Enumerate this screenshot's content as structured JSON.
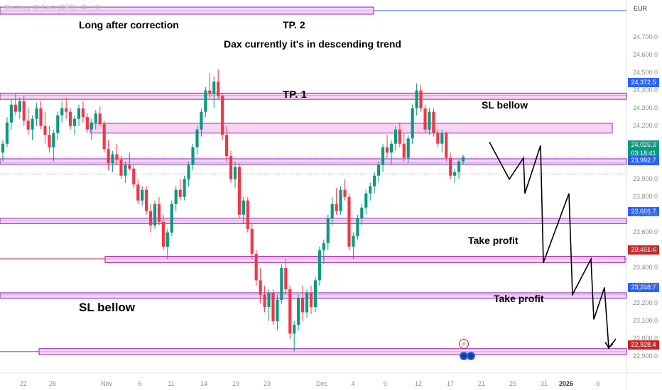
{
  "header": {
    "symbol_text": "Germany 40 Cash (CFD) · 4h · IC",
    "currency": "EUR"
  },
  "annotations": {
    "long_after_correction": "Long after correction",
    "tp2": "TP. 2",
    "dax_trend": "Dax currently it's in descending trend",
    "tp1": "TP. 1",
    "sl_bellow_right": "SL bellow",
    "take_profit_1": "Take profit",
    "take_profit_2": "Take profit",
    "sl_bellow_left": "SL bellow"
  },
  "price_tags": {
    "p24372": "24,372.5",
    "p24025": "24,025.3",
    "countdown": "03:18:41",
    "p23992": "23,992.7",
    "p23666": "23,666.7",
    "p23451": "23,451.4",
    "p23248": "23,248.7",
    "p22928": "22,928.4"
  },
  "colors": {
    "bull": "#089981",
    "bear": "#f23645",
    "zone_fill": "#f5c6f0",
    "zone_border": "#8e24aa",
    "blue_line": "#2962ff",
    "red_line": "#c62828",
    "projection": "#000000"
  },
  "chart_data": {
    "type": "candlestick",
    "instrument": "DAX (Germany 40)",
    "currency": "EUR",
    "y_axis": {
      "ylim": [
        22880,
        24830
      ],
      "ticks": [
        "24,700.0",
        "24,600.0",
        "24,500.0",
        "24,400.0",
        "24,300.0",
        "24,200.0",
        "24,100.0",
        "23,900.0",
        "23,800.0",
        "23,700.0",
        "23,600.0",
        "23,500.0",
        "23,400.0",
        "23,300.0",
        "23,200.0",
        "23,100.0",
        "23,000.0",
        "22,900.0"
      ]
    },
    "x_axis": {
      "ticks": [
        {
          "label": "22",
          "bold": false
        },
        {
          "label": "26",
          "bold": false
        },
        {
          "label": "Nov",
          "bold": false
        },
        {
          "label": "6",
          "bold": false
        },
        {
          "label": "11",
          "bold": false
        },
        {
          "label": "14",
          "bold": false
        },
        {
          "label": "19",
          "bold": false
        },
        {
          "label": "23",
          "bold": false
        },
        {
          "label": "Dec",
          "bold": false
        },
        {
          "label": "4",
          "bold": false
        },
        {
          "label": "9",
          "bold": false
        },
        {
          "label": "12",
          "bold": false
        },
        {
          "label": "17",
          "bold": false
        },
        {
          "label": "21",
          "bold": false
        },
        {
          "label": "25",
          "bold": false
        },
        {
          "label": "31",
          "bold": false
        },
        {
          "label": "2026",
          "bold": true
        },
        {
          "label": "6",
          "bold": false
        }
      ]
    },
    "levels": [
      {
        "price": 24372.5,
        "zone": [
          24350,
          24385
        ],
        "line": "blue"
      },
      {
        "price": 23992.7,
        "zone": [
          23985,
          24015
        ],
        "line": "blue"
      },
      {
        "price": 23666.7,
        "zone": [
          23650,
          23680
        ],
        "line": "blue"
      },
      {
        "price": 23451.4,
        "zone": [
          23430,
          23465
        ],
        "line": "red"
      },
      {
        "price": 23248.7,
        "zone": [
          23230,
          23260
        ],
        "line": "blue"
      },
      {
        "price": 22928.4,
        "zone": [
          22910,
          22945
        ],
        "line": "red"
      },
      {
        "price": 24700,
        "zone": [
          24762,
          24800
        ],
        "line": "blue"
      },
      {
        "price": 24180,
        "zone": [
          24160,
          24215
        ],
        "line": "none"
      }
    ],
    "current_price": 24025.3,
    "candles_ohlc": [
      [
        24050,
        24120,
        24000,
        24100
      ],
      [
        24100,
        24250,
        24080,
        24220
      ],
      [
        24220,
        24350,
        24180,
        24320
      ],
      [
        24320,
        24380,
        24260,
        24280
      ],
      [
        24280,
        24360,
        24240,
        24340
      ],
      [
        24340,
        24370,
        24200,
        24230
      ],
      [
        24230,
        24300,
        24150,
        24180
      ],
      [
        24180,
        24260,
        24120,
        24240
      ],
      [
        24240,
        24330,
        24200,
        24300
      ],
      [
        24300,
        24340,
        24180,
        24200
      ],
      [
        24200,
        24280,
        24100,
        24150
      ],
      [
        24150,
        24200,
        24050,
        24080
      ],
      [
        24080,
        24180,
        24000,
        24160
      ],
      [
        24160,
        24280,
        24120,
        24260
      ],
      [
        24260,
        24340,
        24220,
        24300
      ],
      [
        24300,
        24360,
        24240,
        24280
      ],
      [
        24280,
        24300,
        24180,
        24200
      ],
      [
        24200,
        24260,
        24150,
        24240
      ],
      [
        24240,
        24320,
        24200,
        24300
      ],
      [
        24300,
        24340,
        24220,
        24250
      ],
      [
        24250,
        24270,
        24160,
        24180
      ],
      [
        24180,
        24240,
        24120,
        24220
      ],
      [
        24220,
        24290,
        24180,
        24270
      ],
      [
        24270,
        24310,
        24200,
        24210
      ],
      [
        24210,
        24230,
        24050,
        24070
      ],
      [
        24070,
        24120,
        23950,
        23990
      ],
      [
        23990,
        24060,
        23940,
        24040
      ],
      [
        24040,
        24100,
        23980,
        24010
      ],
      [
        24010,
        24030,
        23900,
        23920
      ],
      [
        23920,
        24000,
        23880,
        23980
      ],
      [
        23980,
        24050,
        23950,
        23960
      ],
      [
        23960,
        23980,
        23850,
        23870
      ],
      [
        23870,
        23900,
        23760,
        23780
      ],
      [
        23780,
        23860,
        23750,
        23840
      ],
      [
        23840,
        23860,
        23700,
        23720
      ],
      [
        23720,
        23760,
        23600,
        23640
      ],
      [
        23640,
        23780,
        23620,
        23760
      ],
      [
        23760,
        23800,
        23640,
        23660
      ],
      [
        23660,
        23700,
        23500,
        23520
      ],
      [
        23520,
        23620,
        23450,
        23600
      ],
      [
        23600,
        23780,
        23580,
        23760
      ],
      [
        23760,
        23860,
        23720,
        23840
      ],
      [
        23840,
        23900,
        23780,
        23800
      ],
      [
        23800,
        23920,
        23780,
        23900
      ],
      [
        23900,
        24000,
        23860,
        23980
      ],
      [
        23980,
        24100,
        23950,
        24080
      ],
      [
        24080,
        24200,
        24040,
        24180
      ],
      [
        24180,
        24300,
        24140,
        24280
      ],
      [
        24280,
        24420,
        24250,
        24400
      ],
      [
        24400,
        24500,
        24360,
        24380
      ],
      [
        24380,
        24480,
        24300,
        24450
      ],
      [
        24450,
        24520,
        24350,
        24370
      ],
      [
        24370,
        24380,
        24120,
        24150
      ],
      [
        24150,
        24200,
        24000,
        24030
      ],
      [
        24030,
        24060,
        23880,
        23900
      ],
      [
        23900,
        24000,
        23850,
        23970
      ],
      [
        23970,
        23990,
        23680,
        23700
      ],
      [
        23700,
        23800,
        23650,
        23780
      ],
      [
        23780,
        23800,
        23600,
        23620
      ],
      [
        23620,
        23650,
        23450,
        23480
      ],
      [
        23480,
        23500,
        23300,
        23330
      ],
      [
        23330,
        23400,
        23200,
        23250
      ],
      [
        23250,
        23300,
        23150,
        23180
      ],
      [
        23180,
        23280,
        23100,
        23260
      ],
      [
        23260,
        23280,
        23080,
        23100
      ],
      [
        23100,
        23250,
        23050,
        23220
      ],
      [
        23220,
        23420,
        23200,
        23400
      ],
      [
        23400,
        23450,
        23250,
        23280
      ],
      [
        23280,
        23300,
        23000,
        23030
      ],
      [
        23030,
        23100,
        22930,
        23080
      ],
      [
        23080,
        23250,
        23050,
        23230
      ],
      [
        23230,
        23300,
        23100,
        23150
      ],
      [
        23150,
        23280,
        23120,
        23260
      ],
      [
        23260,
        23300,
        23140,
        23180
      ],
      [
        23180,
        23350,
        23150,
        23330
      ],
      [
        23330,
        23520,
        23300,
        23500
      ],
      [
        23500,
        23560,
        23420,
        23540
      ],
      [
        23540,
        23700,
        23500,
        23680
      ],
      [
        23680,
        23800,
        23640,
        23760
      ],
      [
        23760,
        23850,
        23700,
        23720
      ],
      [
        23720,
        23860,
        23700,
        23840
      ],
      [
        23840,
        23900,
        23780,
        23800
      ],
      [
        23800,
        23820,
        23500,
        23520
      ],
      [
        23520,
        23600,
        23450,
        23580
      ],
      [
        23580,
        23700,
        23560,
        23680
      ],
      [
        23680,
        23760,
        23640,
        23740
      ],
      [
        23740,
        23840,
        23700,
        23820
      ],
      [
        23820,
        23880,
        23780,
        23860
      ],
      [
        23860,
        23940,
        23820,
        23920
      ],
      [
        23920,
        24000,
        23880,
        23980
      ],
      [
        23980,
        24100,
        23940,
        24080
      ],
      [
        24080,
        24150,
        24020,
        24050
      ],
      [
        24050,
        24120,
        23980,
        24100
      ],
      [
        24100,
        24200,
        24060,
        24180
      ],
      [
        24180,
        24220,
        24080,
        24100
      ],
      [
        24100,
        24160,
        24000,
        24020
      ],
      [
        24020,
        24150,
        23990,
        24130
      ],
      [
        24130,
        24320,
        24100,
        24300
      ],
      [
        24300,
        24440,
        24260,
        24400
      ],
      [
        24400,
        24430,
        24280,
        24300
      ],
      [
        24300,
        24320,
        24160,
        24180
      ],
      [
        24180,
        24300,
        24150,
        24280
      ],
      [
        24280,
        24300,
        24140,
        24160
      ],
      [
        24160,
        24180,
        24080,
        24100
      ],
      [
        24100,
        24180,
        24050,
        24160
      ],
      [
        24160,
        24170,
        24000,
        24020
      ],
      [
        24020,
        24050,
        23900,
        23920
      ],
      [
        23920,
        23960,
        23880,
        23940
      ],
      [
        23940,
        24010,
        23900,
        24000
      ],
      [
        24000,
        24040,
        23980,
        24025
      ]
    ],
    "projection_path_prices": [
      24110,
      23900,
      24020,
      23820,
      24090,
      23430,
      23820,
      23250,
      23450,
      23110,
      23290,
      22950,
      23000
    ]
  }
}
